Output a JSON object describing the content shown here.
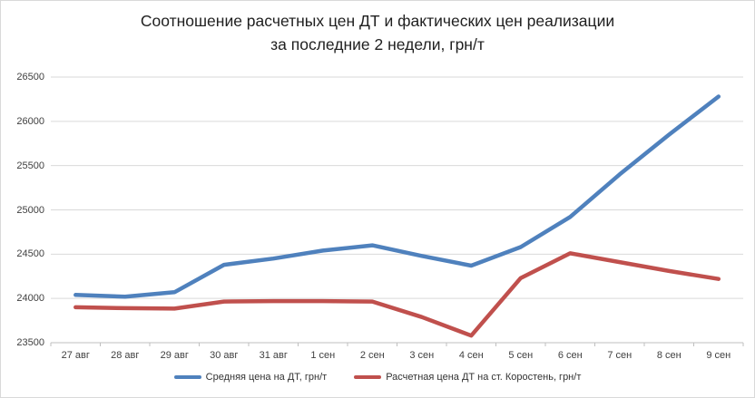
{
  "chart_data": {
    "type": "line",
    "title_lines": [
      "Соотношение расчетных цен ДТ и фактических цен реализации",
      "за последние 2 недели, грн/т"
    ],
    "categories": [
      "27 авг",
      "28 авг",
      "29 авг",
      "30 авг",
      "31 авг",
      "1 сен",
      "2 сен",
      "3 сен",
      "4 сен",
      "5 сен",
      "6 сен",
      "7 сен",
      "8 сен",
      "9 сен"
    ],
    "series": [
      {
        "name": "Средняя цена на ДТ, грн/т",
        "color": "#4F81BD",
        "values": [
          24040,
          24020,
          24070,
          24380,
          24450,
          24540,
          24600,
          24480,
          24370,
          24580,
          24920,
          25400,
          25850,
          26280
        ]
      },
      {
        "name": "Расчетная цена ДТ на ст. Коростень, грн/т",
        "color": "#C0504D",
        "values": [
          23900,
          23890,
          23885,
          23965,
          23970,
          23970,
          23965,
          23790,
          23580,
          24230,
          24510,
          24410,
          24310,
          24220
        ]
      }
    ],
    "ylim": [
      23500,
      26500
    ],
    "yticks": [
      23500,
      24000,
      24500,
      25000,
      25500,
      26000,
      26500
    ],
    "grid": true,
    "legend_position": "bottom",
    "colors": {
      "gridline": "#D9D9D9",
      "axis": "#BFBFBF",
      "tick_text": "#404040",
      "title_text": "#1F1F1F",
      "background": "#FFFFFF",
      "border": "#D9D9D9"
    }
  }
}
